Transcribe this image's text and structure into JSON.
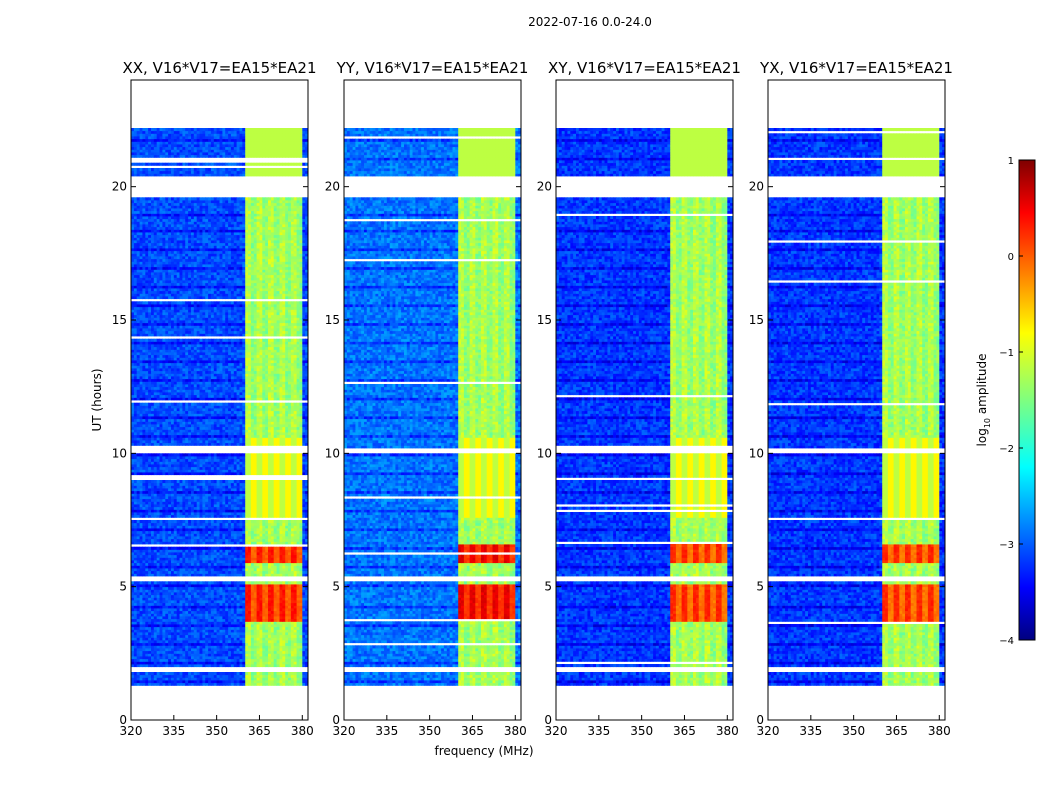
{
  "chart_data": {
    "type": "heatmap",
    "suptitle": "2022-07-16 0.0-24.0",
    "xlabel": "frequency (MHz)",
    "ylabel": "UT (hours)",
    "xlim": [
      320,
      382
    ],
    "ylim": [
      0,
      24
    ],
    "xticks": [
      320,
      335,
      350,
      365,
      380
    ],
    "yticks": [
      0,
      5,
      10,
      15,
      20
    ],
    "colormap": "jet",
    "colorbar": {
      "label": "log",
      "label_sub": "10",
      "label_rest": " amplitude",
      "range": [
        -4,
        1
      ],
      "ticks": [
        -4,
        -3,
        -2,
        -1,
        0,
        1
      ]
    },
    "data_coverage_hours": [
      1.3,
      22.2
    ],
    "empty_hour_bands": [
      [
        1.8,
        2.0
      ],
      [
        5.1,
        5.3
      ],
      [
        9.9,
        10.1
      ],
      [
        19.6,
        20.4
      ]
    ],
    "rfi_frequency_band_mhz": [
      360,
      380
    ],
    "strong_rfi_hours": [
      [
        3.7,
        5.0
      ],
      [
        5.8,
        6.5
      ]
    ],
    "panels": [
      {
        "title": "XX, V16*V17=EA15*EA21",
        "background_level": -3.0,
        "rfi_peak_level": 0.3
      },
      {
        "title": "YY, V16*V17=EA15*EA21",
        "background_level": -2.8,
        "rfi_peak_level": 0.5
      },
      {
        "title": "XY, V16*V17=EA15*EA21",
        "background_level": -3.1,
        "rfi_peak_level": 0.2
      },
      {
        "title": "YX, V16*V17=EA15*EA21",
        "background_level": -3.1,
        "rfi_peak_level": 0.2
      }
    ]
  }
}
